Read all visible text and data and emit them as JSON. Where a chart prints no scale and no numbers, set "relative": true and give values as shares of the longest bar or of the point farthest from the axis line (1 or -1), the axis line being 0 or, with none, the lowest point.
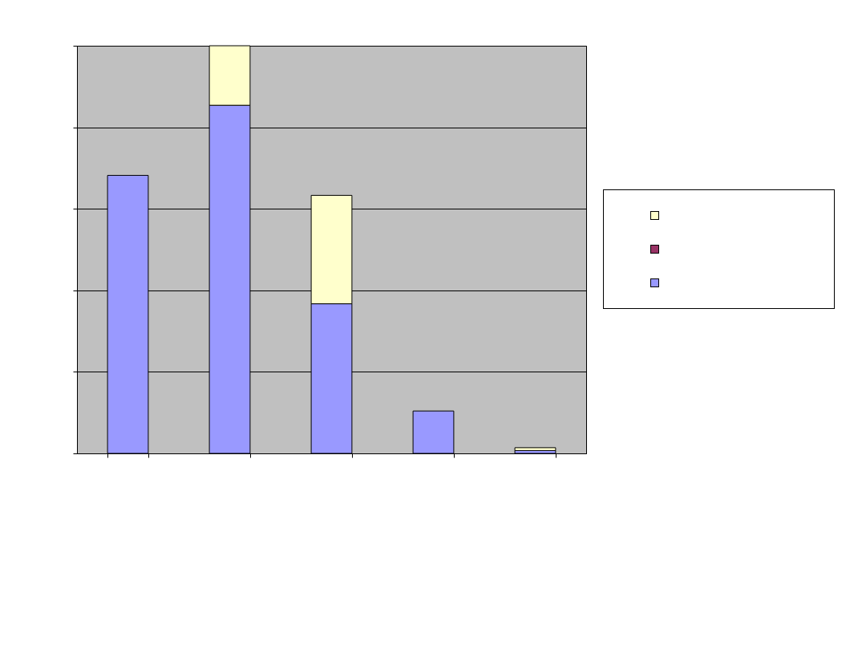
{
  "chart_data": {
    "type": "bar",
    "stacked": true,
    "relative": true,
    "categories": [
      null,
      null,
      null,
      null,
      null
    ],
    "series": [
      {
        "color": "#9999ff",
        "values": [
          0.682,
          0.854,
          0.367,
          0.104,
          0.007
        ]
      },
      {
        "color": "#993366",
        "values": [
          0,
          0,
          0,
          0,
          0
        ]
      },
      {
        "color": "#ffffcc",
        "values": [
          0,
          0.146,
          0.266,
          0,
          0.007
        ]
      }
    ],
    "grid": "y"
  }
}
